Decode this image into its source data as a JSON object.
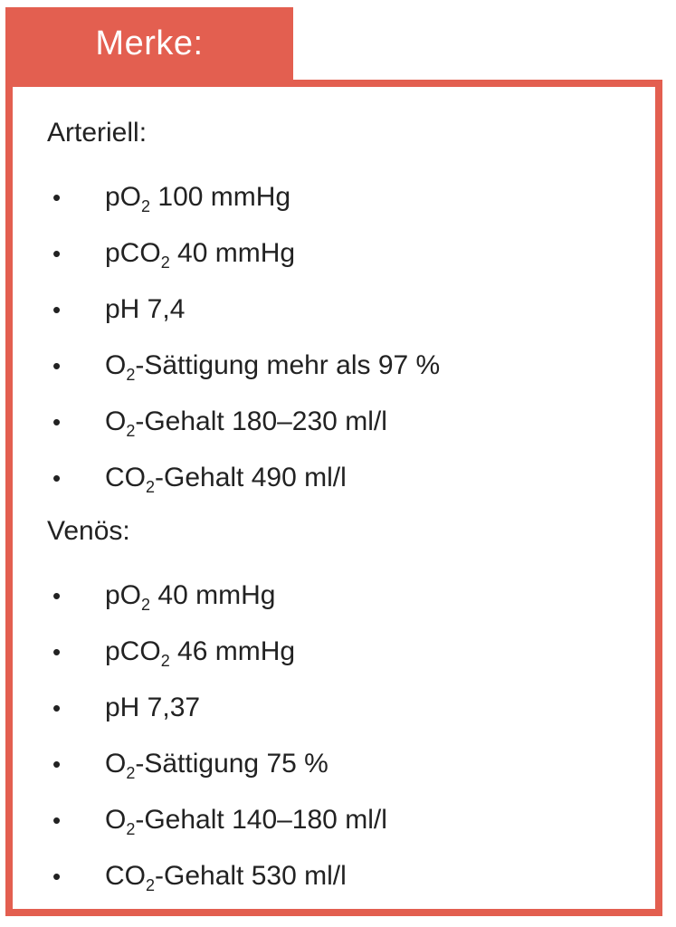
{
  "header": {
    "title": "Merke:"
  },
  "sections": [
    {
      "heading": "Arteriell:",
      "items": [
        {
          "pre": "pO",
          "sub": "2",
          "post": " 100 mmHg"
        },
        {
          "pre": "pCO",
          "sub": "2",
          "post": " 40 mmHg"
        },
        {
          "pre": "pH 7,4",
          "sub": "",
          "post": ""
        },
        {
          "pre": "O",
          "sub": "2",
          "post": "-Sättigung mehr als 97 %"
        },
        {
          "pre": "O",
          "sub": "2",
          "post": "-Gehalt 180–230 ml/l"
        },
        {
          "pre": "CO",
          "sub": "2",
          "post": "-Gehalt 490 ml/l"
        }
      ]
    },
    {
      "heading": "Venös:",
      "items": [
        {
          "pre": "pO",
          "sub": "2",
          "post": " 40 mmHg"
        },
        {
          "pre": "pCO",
          "sub": "2",
          "post": " 46 mmHg"
        },
        {
          "pre": "pH 7,37",
          "sub": "",
          "post": ""
        },
        {
          "pre": "O",
          "sub": "2",
          "post": "-Sättigung 75 %"
        },
        {
          "pre": "O",
          "sub": "2",
          "post": "-Gehalt 140–180 ml/l"
        },
        {
          "pre": "CO",
          "sub": "2",
          "post": "-Gehalt 530 ml/l"
        }
      ]
    }
  ],
  "bullet_symbol": "•",
  "colors": {
    "accent": "#e35f50",
    "text": "#222222",
    "tab_text": "#ffffff"
  }
}
